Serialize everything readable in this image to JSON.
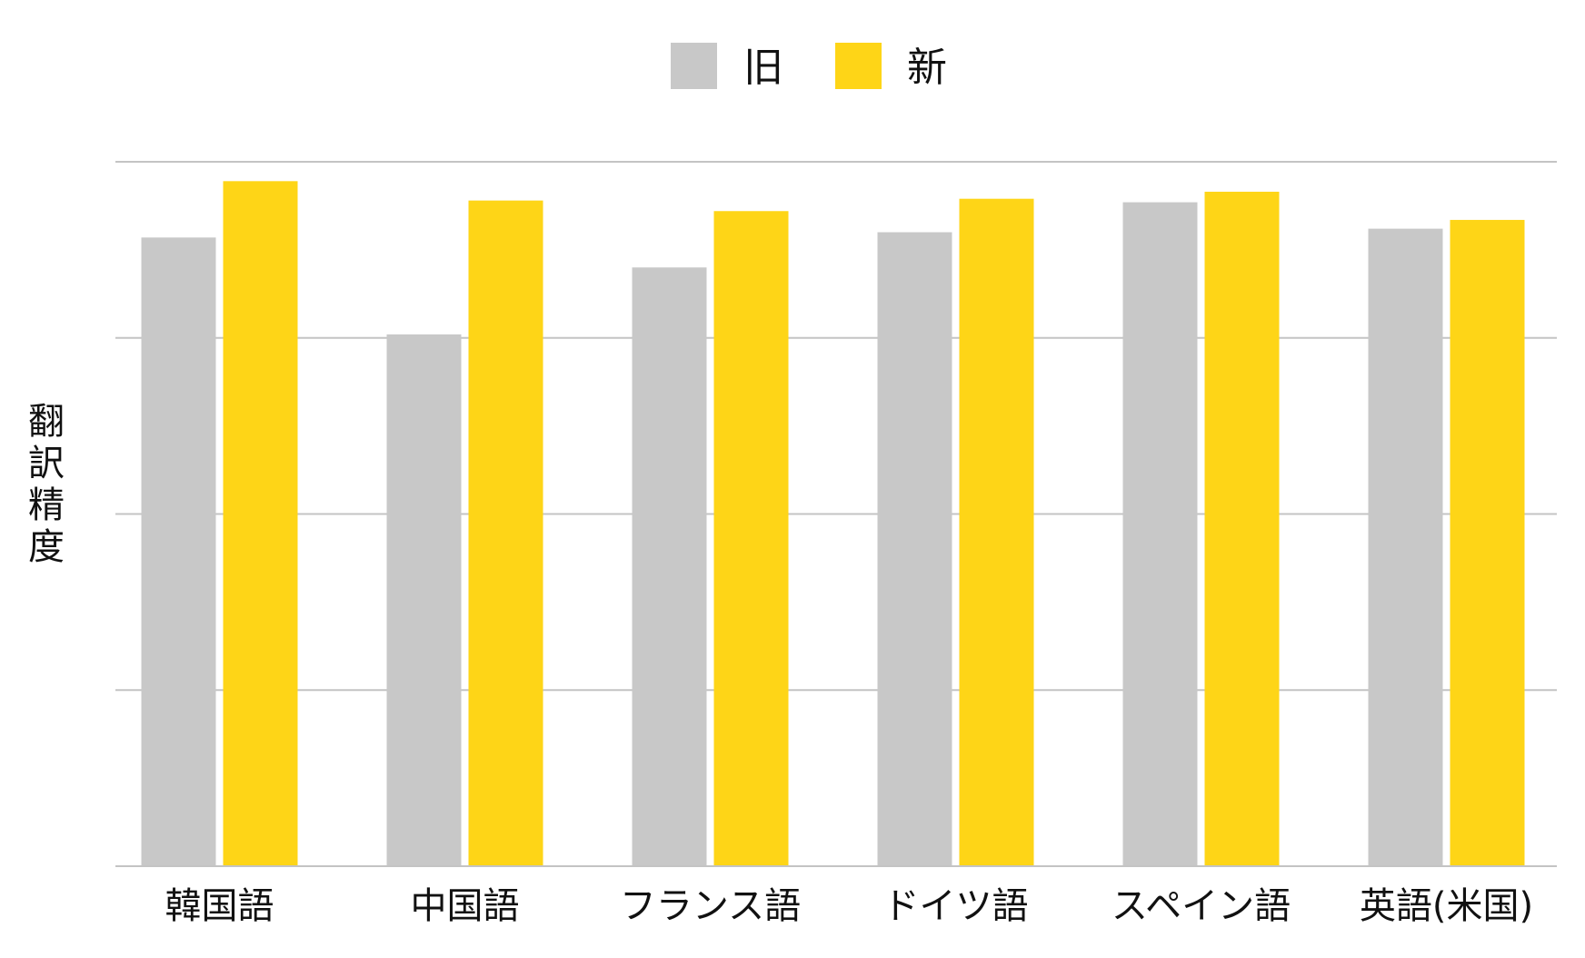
{
  "chart_data": {
    "type": "bar",
    "title": "",
    "xlabel": "",
    "ylabel": "翻訳精度",
    "categories": [
      "韓国語",
      "中国語",
      "フランス語",
      "ドイツ語",
      "スペイン語",
      "英語(米国)"
    ],
    "series": [
      {
        "name": "旧",
        "color": "#c8c8c8",
        "values": [
          3.57,
          3.02,
          3.4,
          3.6,
          3.77,
          3.62
        ]
      },
      {
        "name": "新",
        "color": "#fed517",
        "values": [
          3.89,
          3.78,
          3.72,
          3.79,
          3.83,
          3.67
        ]
      }
    ],
    "ylim": [
      0,
      4
    ],
    "gridlines": [
      0,
      1,
      2,
      3,
      4
    ],
    "y_tick_labels_shown": false,
    "grid": true,
    "legend_position": "top-center"
  }
}
